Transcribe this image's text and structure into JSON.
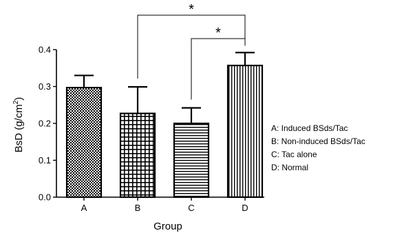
{
  "chart_data": {
    "type": "bar",
    "categories": [
      "A",
      "B",
      "C",
      "D"
    ],
    "values": [
      0.297,
      0.227,
      0.2,
      0.357
    ],
    "errors": [
      0.033,
      0.072,
      0.042,
      0.035
    ],
    "xlabel": "Group",
    "ylabel_main": "BsD (g/cm",
    "ylabel_sup": "2",
    "ylabel_close": ")",
    "ylim": [
      0,
      0.4
    ],
    "yticks": [
      "0.0",
      "0.1",
      "0.2",
      "0.3",
      "0.4"
    ],
    "yticks_values": [
      0.0,
      0.1,
      0.2,
      0.3,
      0.4
    ],
    "legend": [
      "A: Induced BSds/Tac",
      "B: Non-induced BSds/Tac",
      "C: Tac alone",
      "D: Normal"
    ],
    "significance": [
      {
        "from": "B",
        "to": "D",
        "label": "*"
      },
      {
        "from": "C",
        "to": "D",
        "label": "*"
      }
    ],
    "patterns": [
      "checker",
      "grid",
      "horizontal-lines",
      "vertical-lines"
    ]
  }
}
